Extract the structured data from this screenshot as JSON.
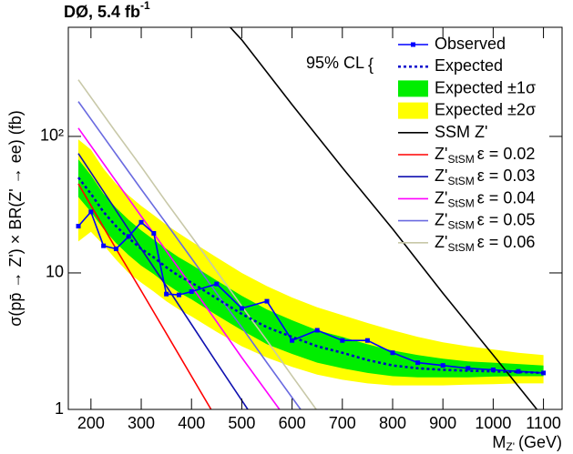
{
  "chart_data": {
    "type": "line",
    "title": "DØ, 5.4 fb",
    "title_sup": "-1",
    "ylabel": "σ(pp̄ → Z') × BR(Z' → ee) (fb)",
    "xlabel": "M",
    "xlabel_sub": "Z'",
    "xlabel_unit": "(GeV)",
    "log_y": true,
    "xlim": [
      155,
      1137
    ],
    "ylim": [
      1,
      630
    ],
    "xticks": [
      200,
      300,
      400,
      500,
      600,
      700,
      800,
      900,
      1000,
      1100
    ],
    "yticks": [
      1,
      10,
      {
        "value": 100,
        "label": "10²"
      }
    ],
    "legend_header": "95% CL",
    "x": [
      175,
      200,
      225,
      250,
      275,
      300,
      325,
      350,
      375,
      400,
      450,
      500,
      550,
      600,
      650,
      700,
      750,
      800,
      850,
      900,
      950,
      1000,
      1050,
      1100
    ],
    "series": [
      {
        "name": "Observed",
        "color": "#0000ff",
        "marker": "square",
        "values": [
          22,
          28,
          15.8,
          15,
          18.5,
          23.5,
          19.5,
          7,
          6.9,
          7.3,
          8.3,
          5.5,
          6.2,
          3.2,
          3.8,
          3.2,
          3.2,
          2.6,
          2.2,
          2.1,
          2.0,
          1.95,
          1.9,
          1.85
        ]
      },
      {
        "name": "Expected",
        "color": "#0000cc",
        "dashed": true,
        "values": [
          50,
          38,
          28,
          22,
          18,
          15,
          13,
          11,
          9.5,
          8.5,
          6.5,
          5,
          4,
          3.4,
          2.9,
          2.6,
          2.3,
          2.1,
          2.0,
          1.95,
          1.92,
          1.9,
          1.88,
          1.85
        ]
      }
    ],
    "bands": [
      {
        "name": "Expected ±1σ",
        "color": "#00ee00",
        "lower": [
          36,
          28,
          21,
          16.5,
          13.5,
          11.3,
          9.8,
          8.3,
          7.2,
          6.4,
          4.9,
          3.8,
          3.0,
          2.55,
          2.2,
          2.0,
          1.85,
          1.75,
          1.72,
          1.72,
          1.72,
          1.74,
          1.75,
          1.75
        ],
        "upper": [
          68,
          52,
          38,
          30,
          24.5,
          20.5,
          17.5,
          15,
          13,
          11.5,
          8.8,
          6.8,
          5.4,
          4.5,
          3.8,
          3.4,
          3.0,
          2.7,
          2.5,
          2.35,
          2.25,
          2.2,
          2.15,
          2.1
        ]
      },
      {
        "name": "Expected ±2σ",
        "color": "#ffff00",
        "lower": [
          17,
          20,
          16,
          12.5,
          10,
          8.5,
          7.3,
          6.2,
          5.4,
          4.8,
          3.7,
          2.9,
          2.4,
          2.05,
          1.8,
          1.65,
          1.55,
          1.5,
          1.5,
          1.5,
          1.52,
          1.53,
          1.55,
          1.55
        ],
        "upper": [
          95,
          80,
          58,
          45,
          37,
          31,
          26.5,
          22.5,
          19.5,
          17,
          13,
          10,
          8,
          6.6,
          5.6,
          4.9,
          4.3,
          3.8,
          3.4,
          3.1,
          2.9,
          2.75,
          2.6,
          2.5
        ]
      }
    ],
    "lines": [
      {
        "name": "SSM Z'",
        "color": "#000000",
        "x": [
          477,
          500,
          600,
          700,
          800,
          900,
          1000,
          1087
        ],
        "values": [
          630,
          510,
          171,
          59,
          21,
          7.1,
          2.5,
          1.0
        ]
      },
      {
        "name": "Z'",
        "name_sub": "StSM",
        "name_rest": "ε = 0.02",
        "color": "#ff0000",
        "x": [
          175,
          250,
          300,
          350,
          400,
          439
        ],
        "values": [
          45,
          15,
          7.4,
          3.6,
          1.75,
          1
        ]
      },
      {
        "name": "Z'",
        "name_sub": "StSM",
        "name_rest": "ε = 0.03",
        "color": "#1010b0",
        "x": [
          175,
          250,
          300,
          350,
          400,
          450,
          512
        ],
        "values": [
          75,
          28.7,
          15,
          8,
          4.2,
          2.2,
          1
        ]
      },
      {
        "name": "Z'",
        "name_sub": "StSM",
        "name_rest": "ε = 0.04",
        "color": "#ff00ff",
        "x": [
          175,
          250,
          300,
          350,
          400,
          450,
          500,
          575
        ],
        "values": [
          115,
          47,
          26,
          14.5,
          8,
          4.4,
          2.4,
          1
        ]
      },
      {
        "name": "Z'",
        "name_sub": "StSM",
        "name_rest": "ε = 0.05",
        "color": "#6a6ae0",
        "x": [
          175,
          250,
          300,
          350,
          400,
          450,
          500,
          550,
          617
        ],
        "values": [
          180,
          74,
          41,
          23,
          12.8,
          7.1,
          4,
          2.2,
          1
        ]
      },
      {
        "name": "Z'",
        "name_sub": "StSM",
        "name_rest": "ε = 0.06",
        "color": "#c8c8a8",
        "x": [
          175,
          250,
          300,
          350,
          400,
          450,
          500,
          550,
          600,
          648
        ],
        "values": [
          260,
          107,
          60,
          33,
          18.5,
          10.3,
          5.7,
          3.2,
          1.76,
          1
        ]
      }
    ]
  }
}
